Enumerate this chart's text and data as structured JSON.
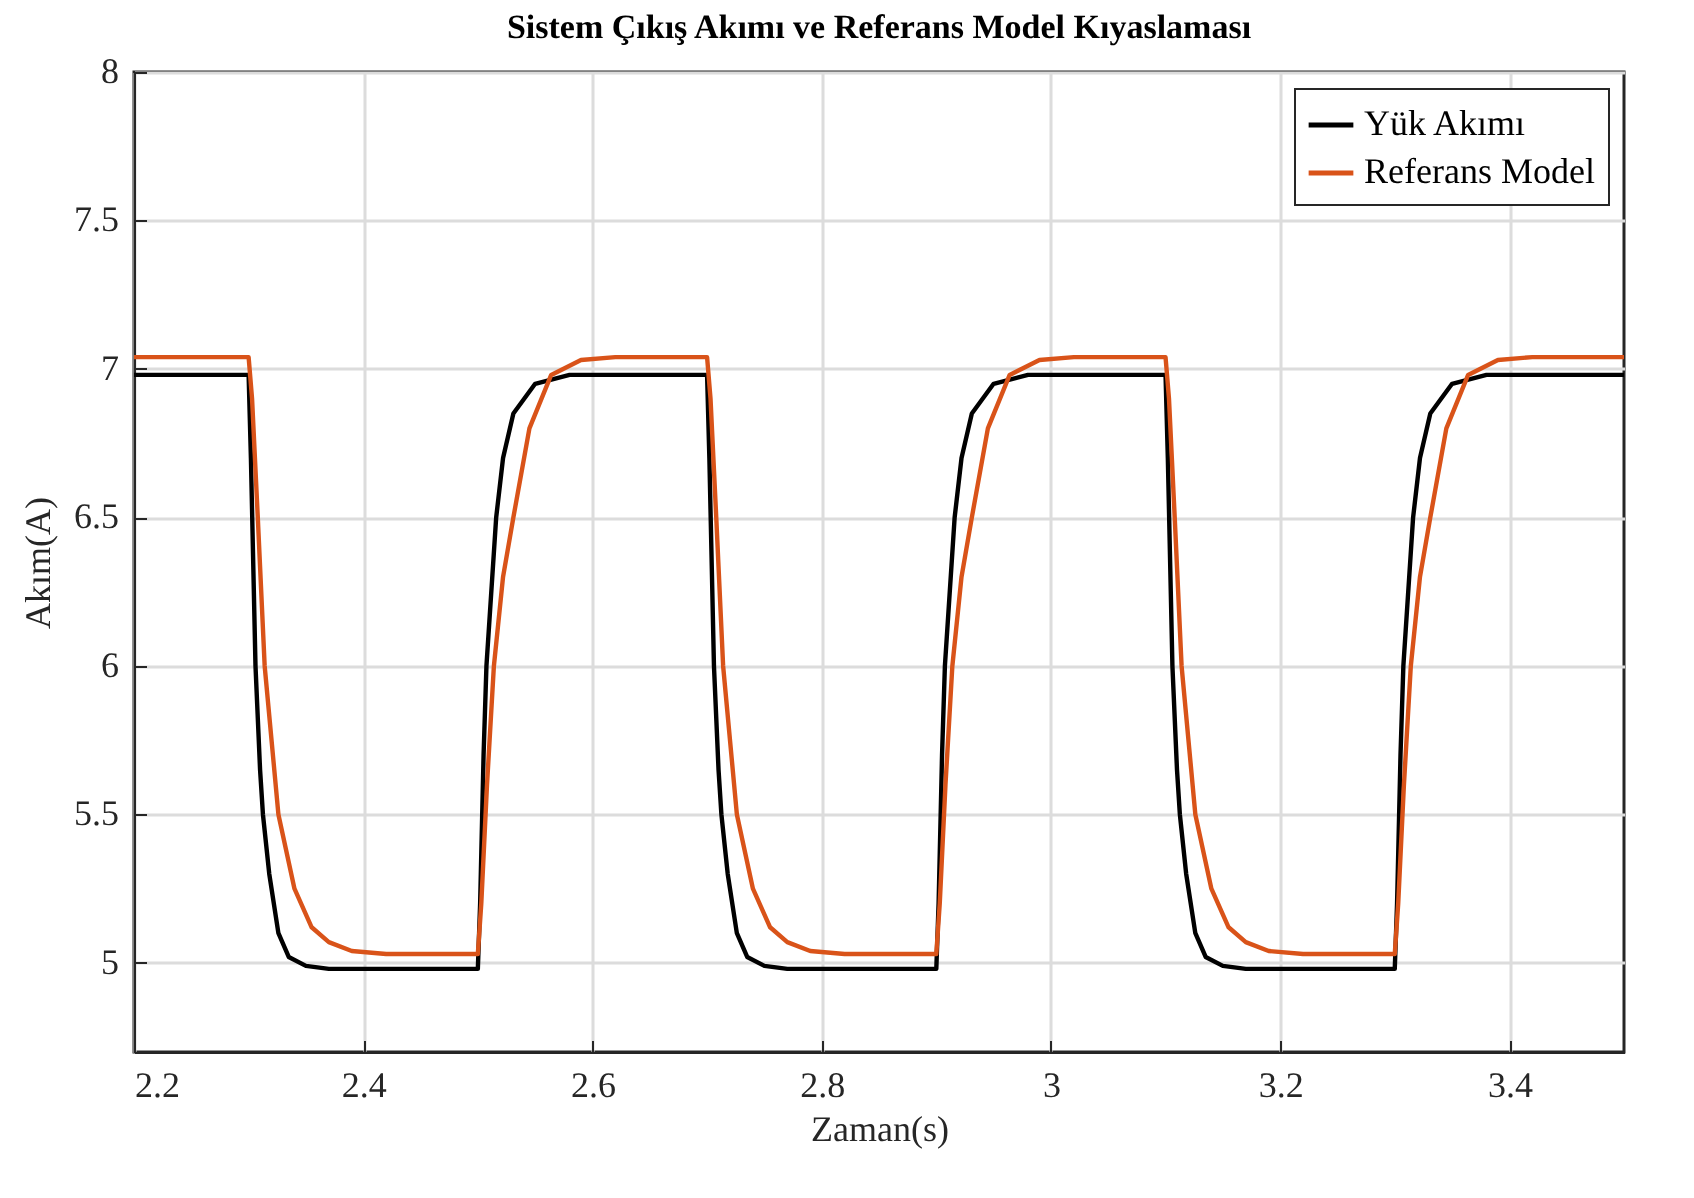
{
  "chart_data": {
    "type": "line",
    "title": "Sistem Çıkış Akımı ve Referans Model Kıyaslaması",
    "xlabel": "Zaman(s)",
    "ylabel": "Akım(A)",
    "xlim": [
      2.2,
      3.5
    ],
    "xticks": [
      2.2,
      2.4,
      2.6,
      2.8,
      3,
      3.2,
      3.4
    ],
    "ylim": [
      4.7,
      8
    ],
    "yticks": [
      5,
      5.5,
      6,
      6.5,
      7,
      7.5,
      8
    ],
    "grid": true,
    "legend": "top right",
    "marker": "none",
    "line_style": "solid",
    "series": [
      {
        "name": "Yük Akımı",
        "color": "#000000",
        "x": [
          2.2,
          2.3,
          2.302,
          2.306,
          2.31,
          2.3125,
          2.318,
          2.326,
          2.335,
          2.35,
          2.37,
          2.5,
          2.502,
          2.505,
          2.5075,
          2.516,
          2.522,
          2.531,
          2.55,
          2.58,
          2.7,
          2.702,
          2.706,
          2.71,
          2.7125,
          2.718,
          2.726,
          2.735,
          2.75,
          2.77,
          2.9,
          2.902,
          2.905,
          2.9075,
          2.916,
          2.922,
          2.931,
          2.95,
          2.98,
          3.1,
          3.102,
          3.106,
          3.11,
          3.1125,
          3.118,
          3.126,
          3.135,
          3.15,
          3.17,
          3.3,
          3.302,
          3.305,
          3.3075,
          3.316,
          3.322,
          3.331,
          3.35,
          3.38,
          3.5
        ],
        "values": [
          6.98,
          6.98,
          6.7,
          6.0,
          5.65,
          5.5,
          5.3,
          5.1,
          5.02,
          4.99,
          4.98,
          4.98,
          5.2,
          5.7,
          6.0,
          6.5,
          6.7,
          6.85,
          6.95,
          6.98,
          6.98,
          6.7,
          6.0,
          5.65,
          5.5,
          5.3,
          5.1,
          5.02,
          4.99,
          4.98,
          4.98,
          5.2,
          5.7,
          6.0,
          6.5,
          6.7,
          6.85,
          6.95,
          6.98,
          6.98,
          6.7,
          6.0,
          5.65,
          5.5,
          5.3,
          5.1,
          5.02,
          4.99,
          4.98,
          4.98,
          5.2,
          5.7,
          6.0,
          6.5,
          6.7,
          6.85,
          6.95,
          6.98,
          6.98
        ]
      },
      {
        "name": "Referans Model",
        "color": "#d95319",
        "x": [
          2.2,
          2.3,
          2.303,
          2.308,
          2.314,
          2.326,
          2.34,
          2.355,
          2.37,
          2.39,
          2.42,
          2.5,
          2.503,
          2.508,
          2.514,
          2.522,
          2.531,
          2.545,
          2.564,
          2.59,
          2.62,
          2.7,
          2.703,
          2.708,
          2.714,
          2.726,
          2.74,
          2.755,
          2.77,
          2.79,
          2.82,
          2.9,
          2.903,
          2.908,
          2.914,
          2.922,
          2.931,
          2.945,
          2.964,
          2.99,
          3.02,
          3.1,
          3.103,
          3.108,
          3.114,
          3.126,
          3.14,
          3.155,
          3.17,
          3.19,
          3.22,
          3.3,
          3.303,
          3.308,
          3.314,
          3.322,
          3.331,
          3.345,
          3.364,
          3.39,
          3.42,
          3.5
        ],
        "values": [
          7.04,
          7.04,
          6.9,
          6.5,
          6.0,
          5.5,
          5.25,
          5.12,
          5.07,
          5.04,
          5.03,
          5.03,
          5.2,
          5.6,
          6.0,
          6.3,
          6.5,
          6.8,
          6.98,
          7.03,
          7.04,
          7.04,
          6.9,
          6.5,
          6.0,
          5.5,
          5.25,
          5.12,
          5.07,
          5.04,
          5.03,
          5.03,
          5.2,
          5.6,
          6.0,
          6.3,
          6.5,
          6.8,
          6.98,
          7.03,
          7.04,
          7.04,
          6.9,
          6.5,
          6.0,
          5.5,
          5.25,
          5.12,
          5.07,
          5.04,
          5.03,
          5.03,
          5.2,
          5.6,
          6.0,
          6.3,
          6.5,
          6.8,
          6.98,
          7.03,
          7.04,
          7.04
        ]
      }
    ]
  }
}
